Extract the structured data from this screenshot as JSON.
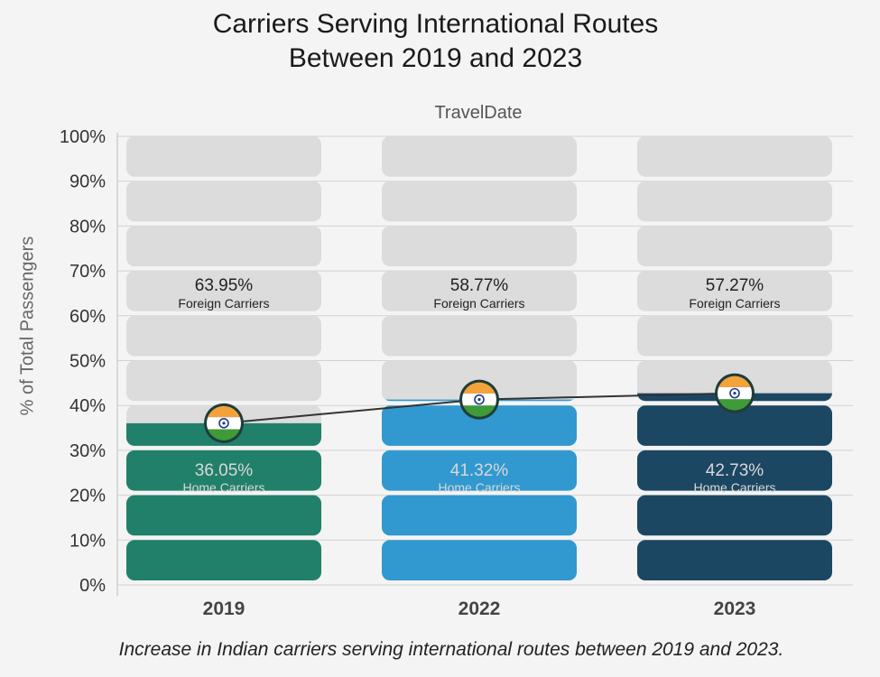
{
  "chart_data": {
    "type": "bar",
    "title": "Carriers Serving International Routes Between 2019 and 2023",
    "title_lines": [
      "Carriers Serving International Routes",
      "Between 2019 and 2023"
    ],
    "subtitle": "TravelDate",
    "ylabel": "% of Total Passengers",
    "xlabel": "",
    "ylim": [
      0,
      100
    ],
    "yticks": [
      "0%",
      "10%",
      "20%",
      "30%",
      "40%",
      "50%",
      "60%",
      "70%",
      "80%",
      "90%",
      "100%"
    ],
    "categories": [
      "2019",
      "2022",
      "2023"
    ],
    "series": [
      {
        "name": "Home Carriers",
        "values": [
          36.05,
          41.32,
          42.73
        ],
        "labels": [
          "36.05%",
          "41.32%",
          "42.73%"
        ]
      },
      {
        "name": "Foreign Carriers",
        "values": [
          63.95,
          58.77,
          57.27
        ],
        "labels": [
          "63.95%",
          "58.77%",
          "57.27%"
        ]
      }
    ],
    "bar_colors": [
      "#21806a",
      "#3199cf",
      "#1c4763"
    ],
    "foreign_color": "#dcdcdc",
    "trend_line_color": "#333333",
    "icon": "india-flag-icon",
    "grid": true,
    "caption": "Increase in Indian carriers serving international routes between 2019 and 2023."
  }
}
